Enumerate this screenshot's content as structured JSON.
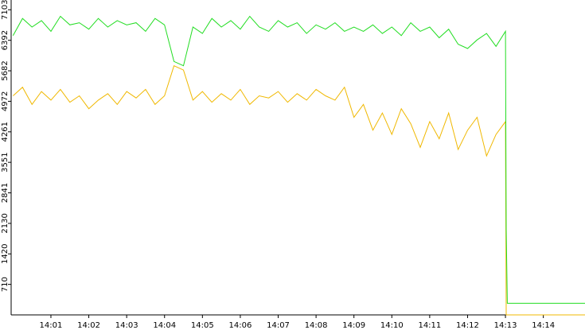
{
  "chart_data": {
    "type": "line",
    "x": [
      0,
      0.25,
      0.5,
      0.75,
      1,
      1.25,
      1.5,
      1.75,
      2,
      2.25,
      2.5,
      2.75,
      3,
      3.25,
      3.5,
      3.75,
      4,
      4.25,
      4.5,
      4.75,
      5,
      5.25,
      5.5,
      5.75,
      6,
      6.25,
      6.5,
      6.75,
      7,
      7.25,
      7.5,
      7.75,
      8,
      8.25,
      8.5,
      8.75,
      9,
      9.25,
      9.5,
      9.75,
      10,
      10.25,
      10.5,
      10.75,
      11,
      11.25,
      11.5,
      11.75,
      12,
      12.25,
      12.5,
      12.75,
      13,
      13.02,
      13.05,
      15.1
    ],
    "series": [
      {
        "color": "#f0b800",
        "values": [
          5100,
          5300,
          4900,
          5200,
          5000,
          5250,
          4950,
          5100,
          4800,
          5000,
          5150,
          4900,
          5200,
          5050,
          5250,
          4900,
          5100,
          5800,
          5700,
          5000,
          5200,
          4950,
          5150,
          5000,
          5250,
          4900,
          5100,
          5050,
          5200,
          4950,
          5150,
          5000,
          5250,
          5100,
          5000,
          5300,
          4600,
          4900,
          4300,
          4700,
          4200,
          4800,
          4450,
          3900,
          4500,
          4100,
          4700,
          3850,
          4300,
          4600,
          3700,
          4200,
          4500,
          0,
          0,
          0
        ]
      },
      {
        "color": "#22dd22",
        "values": [
          6500,
          6900,
          6700,
          6850,
          6600,
          6950,
          6750,
          6800,
          6650,
          6900,
          6700,
          6850,
          6750,
          6800,
          6600,
          6900,
          6750,
          5900,
          5800,
          6700,
          6550,
          6900,
          6700,
          6850,
          6650,
          6950,
          6700,
          6600,
          6850,
          6700,
          6800,
          6550,
          6750,
          6650,
          6800,
          6600,
          6700,
          6600,
          6750,
          6550,
          6700,
          6500,
          6800,
          6600,
          6700,
          6450,
          6650,
          6300,
          6200,
          6400,
          6550,
          6250,
          6600,
          2000,
          270,
          270
        ]
      }
    ],
    "xlim": [
      -0.05,
      15.1
    ],
    "ylim": [
      0,
      7330
    ],
    "xticks": [
      {
        "value": 1,
        "label": "14:01"
      },
      {
        "value": 2,
        "label": "14:02"
      },
      {
        "value": 3,
        "label": "14:03"
      },
      {
        "value": 4,
        "label": "14:04"
      },
      {
        "value": 5,
        "label": "14:05"
      },
      {
        "value": 6,
        "label": "14:06"
      },
      {
        "value": 7,
        "label": "14:07"
      },
      {
        "value": 8,
        "label": "14:08"
      },
      {
        "value": 9,
        "label": "14:09"
      },
      {
        "value": 10,
        "label": "14:10"
      },
      {
        "value": 11,
        "label": "14:11"
      },
      {
        "value": 12,
        "label": "14:12"
      },
      {
        "value": 13,
        "label": "14:13"
      },
      {
        "value": 14,
        "label": "14:14"
      }
    ],
    "yticks": [
      710,
      1420,
      2130,
      2841,
      3551,
      4261,
      4972,
      5682,
      6392,
      7103
    ]
  }
}
